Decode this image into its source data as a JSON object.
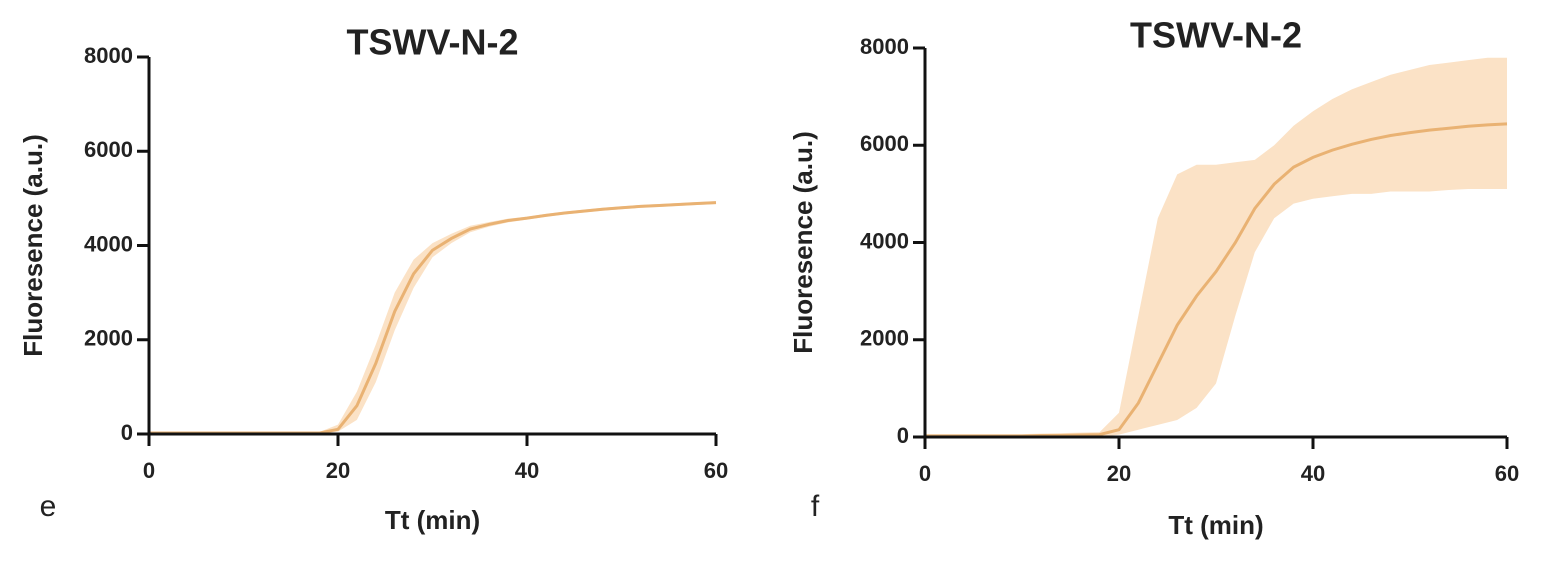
{
  "chart_data": [
    {
      "type": "line",
      "title": "TSWV-N-2",
      "panel_label": "e",
      "xlabel": "Tt (min)",
      "ylabel": "Fluoresence (a.u.)",
      "x": [
        0,
        2,
        4,
        6,
        8,
        10,
        12,
        14,
        16,
        18,
        20,
        22,
        24,
        26,
        28,
        30,
        32,
        34,
        36,
        38,
        40,
        42,
        44,
        46,
        48,
        50,
        52,
        54,
        56,
        58,
        60
      ],
      "values": [
        20,
        20,
        20,
        20,
        20,
        20,
        20,
        20,
        20,
        20,
        100,
        600,
        1500,
        2600,
        3400,
        3900,
        4150,
        4350,
        4450,
        4530,
        4580,
        4640,
        4690,
        4730,
        4770,
        4800,
        4830,
        4850,
        4870,
        4890,
        4910
      ],
      "lower": [
        0,
        0,
        0,
        0,
        0,
        0,
        0,
        0,
        0,
        0,
        50,
        300,
        1100,
        2200,
        3100,
        3750,
        4050,
        4280,
        4400,
        4490,
        4550,
        4610,
        4660,
        4700,
        4740,
        4770,
        4800,
        4820,
        4840,
        4860,
        4880
      ],
      "upper": [
        40,
        40,
        40,
        40,
        40,
        40,
        40,
        40,
        40,
        40,
        200,
        900,
        1900,
        3000,
        3700,
        4050,
        4250,
        4420,
        4500,
        4570,
        4610,
        4670,
        4720,
        4760,
        4800,
        4830,
        4860,
        4880,
        4900,
        4920,
        4940
      ],
      "color": "#e9b273",
      "band_color": "#fbe2c6",
      "xlim": [
        0,
        60
      ],
      "xticks": [
        0,
        20,
        40,
        60
      ],
      "ylim": [
        0,
        8000
      ],
      "yticks": [
        0,
        2000,
        4000,
        6000,
        8000
      ]
    },
    {
      "type": "line",
      "title": "TSWV-N-2",
      "panel_label": "f",
      "xlabel": "Tt (min)",
      "ylabel": "Fluoresence (a.u.)",
      "x": [
        0,
        2,
        4,
        6,
        8,
        10,
        12,
        14,
        16,
        18,
        20,
        22,
        24,
        26,
        28,
        30,
        32,
        34,
        36,
        38,
        40,
        42,
        44,
        46,
        48,
        50,
        52,
        54,
        56,
        58,
        60
      ],
      "values": [
        20,
        20,
        20,
        20,
        20,
        20,
        30,
        30,
        40,
        50,
        150,
        700,
        1500,
        2300,
        2900,
        3400,
        4000,
        4700,
        5200,
        5550,
        5750,
        5900,
        6020,
        6120,
        6200,
        6260,
        6310,
        6350,
        6390,
        6420,
        6440
      ],
      "lower": [
        0,
        0,
        0,
        0,
        0,
        0,
        0,
        0,
        0,
        0,
        50,
        150,
        250,
        350,
        600,
        1100,
        2500,
        3800,
        4500,
        4800,
        4900,
        4950,
        5000,
        5000,
        5050,
        5050,
        5050,
        5080,
        5100,
        5100,
        5100
      ],
      "upper": [
        60,
        60,
        60,
        60,
        60,
        60,
        70,
        80,
        90,
        100,
        500,
        2500,
        4500,
        5400,
        5600,
        5600,
        5650,
        5700,
        6000,
        6400,
        6700,
        6950,
        7150,
        7300,
        7450,
        7550,
        7650,
        7700,
        7750,
        7800,
        7800
      ],
      "color": "#e9b273",
      "band_color": "#fbe2c6",
      "xlim": [
        0,
        60
      ],
      "xticks": [
        0,
        20,
        40,
        60
      ],
      "ylim": [
        0,
        8000
      ],
      "yticks": [
        0,
        2000,
        4000,
        6000,
        8000
      ]
    }
  ]
}
